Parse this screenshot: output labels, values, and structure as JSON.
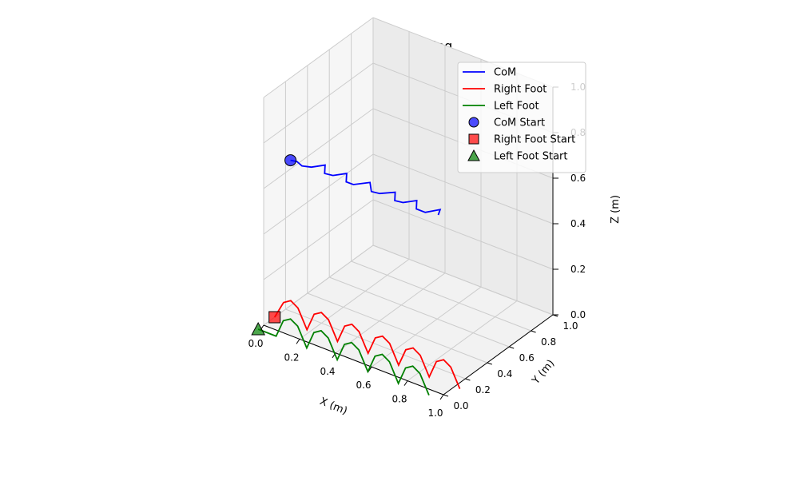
{
  "chart_data": {
    "type": "line3d",
    "title": "Actual walking",
    "xlabel": "X (m)",
    "ylabel": "Y (m)",
    "zlabel": "Z (m)",
    "xlim": [
      0.0,
      1.0
    ],
    "ylim": [
      0.0,
      1.0
    ],
    "zlim": [
      0.0,
      1.0
    ],
    "x_ticks": [
      "0.0",
      "0.2",
      "0.4",
      "0.6",
      "0.8",
      "1.0"
    ],
    "y_ticks": [
      "0.0",
      "0.2",
      "0.4",
      "0.6",
      "0.8",
      "1.0"
    ],
    "z_ticks": [
      "0.0",
      "0.2",
      "0.4",
      "0.6",
      "0.8",
      "1.0"
    ],
    "grid": true,
    "legend_position": "top-right",
    "series": [
      {
        "name": "CoM",
        "color": "#0000ff",
        "points": [
          [
            0.07,
            0.13,
            0.7
          ],
          [
            0.1,
            0.14,
            0.7
          ],
          [
            0.14,
            0.12,
            0.7
          ],
          [
            0.18,
            0.14,
            0.7
          ],
          [
            0.22,
            0.2,
            0.7
          ],
          [
            0.26,
            0.13,
            0.7
          ],
          [
            0.3,
            0.14,
            0.7
          ],
          [
            0.34,
            0.2,
            0.7
          ],
          [
            0.38,
            0.13,
            0.7
          ],
          [
            0.42,
            0.13,
            0.7
          ],
          [
            0.47,
            0.2,
            0.7
          ],
          [
            0.52,
            0.13,
            0.7
          ],
          [
            0.56,
            0.14,
            0.7
          ],
          [
            0.61,
            0.2,
            0.7
          ],
          [
            0.65,
            0.13,
            0.7
          ],
          [
            0.69,
            0.14,
            0.7
          ],
          [
            0.73,
            0.2,
            0.7
          ],
          [
            0.77,
            0.13,
            0.7
          ],
          [
            0.82,
            0.13,
            0.7
          ],
          [
            0.86,
            0.2,
            0.7
          ],
          [
            0.88,
            0.15,
            0.7
          ]
        ]
      },
      {
        "name": "Right Foot",
        "color": "#ff0000",
        "points": [
          [
            0.0,
            0.1,
            0.0
          ],
          [
            0.05,
            0.1,
            0.08
          ],
          [
            0.09,
            0.1,
            0.1
          ],
          [
            0.13,
            0.1,
            0.08
          ],
          [
            0.18,
            0.1,
            0.0
          ],
          [
            0.22,
            0.1,
            0.08
          ],
          [
            0.26,
            0.1,
            0.1
          ],
          [
            0.3,
            0.1,
            0.08
          ],
          [
            0.35,
            0.1,
            0.0
          ],
          [
            0.39,
            0.1,
            0.08
          ],
          [
            0.43,
            0.1,
            0.1
          ],
          [
            0.47,
            0.1,
            0.08
          ],
          [
            0.52,
            0.1,
            0.0
          ],
          [
            0.56,
            0.1,
            0.08
          ],
          [
            0.6,
            0.1,
            0.1
          ],
          [
            0.64,
            0.1,
            0.08
          ],
          [
            0.69,
            0.1,
            0.0
          ],
          [
            0.73,
            0.1,
            0.08
          ],
          [
            0.77,
            0.1,
            0.1
          ],
          [
            0.81,
            0.1,
            0.08
          ],
          [
            0.86,
            0.1,
            0.0
          ],
          [
            0.9,
            0.1,
            0.08
          ],
          [
            0.94,
            0.1,
            0.1
          ],
          [
            0.98,
            0.1,
            0.08
          ],
          [
            1.03,
            0.1,
            0.0
          ]
        ]
      },
      {
        "name": "Left Foot",
        "color": "#008000",
        "points": [
          [
            0.0,
            -0.05,
            0.0
          ],
          [
            0.04,
            -0.05,
            0.0
          ],
          [
            0.08,
            -0.05,
            0.0
          ],
          [
            0.1,
            -0.05,
            0.0
          ],
          [
            0.14,
            -0.05,
            0.08
          ],
          [
            0.18,
            -0.05,
            0.1
          ],
          [
            0.22,
            -0.05,
            0.08
          ],
          [
            0.27,
            -0.05,
            0.0
          ],
          [
            0.31,
            -0.05,
            0.08
          ],
          [
            0.35,
            -0.05,
            0.1
          ],
          [
            0.39,
            -0.05,
            0.08
          ],
          [
            0.44,
            -0.05,
            0.0
          ],
          [
            0.48,
            -0.05,
            0.08
          ],
          [
            0.52,
            -0.05,
            0.1
          ],
          [
            0.56,
            -0.05,
            0.08
          ],
          [
            0.61,
            -0.05,
            0.0
          ],
          [
            0.65,
            -0.05,
            0.08
          ],
          [
            0.69,
            -0.05,
            0.1
          ],
          [
            0.73,
            -0.05,
            0.08
          ],
          [
            0.78,
            -0.05,
            0.0
          ],
          [
            0.82,
            -0.05,
            0.08
          ],
          [
            0.86,
            -0.05,
            0.1
          ],
          [
            0.9,
            -0.05,
            0.08
          ],
          [
            0.95,
            -0.05,
            0.0
          ]
        ]
      }
    ],
    "start_markers": [
      {
        "name": "CoM Start",
        "shape": "circle",
        "color": "#0000ff",
        "point": [
          0.07,
          0.13,
          0.7
        ]
      },
      {
        "name": "Right Foot Start",
        "shape": "square",
        "color": "#ff0000",
        "point": [
          0.0,
          0.1,
          0.0
        ]
      },
      {
        "name": "Left Foot Start",
        "shape": "triangle",
        "color": "#008000",
        "point": [
          0.0,
          -0.05,
          0.0
        ]
      }
    ]
  }
}
